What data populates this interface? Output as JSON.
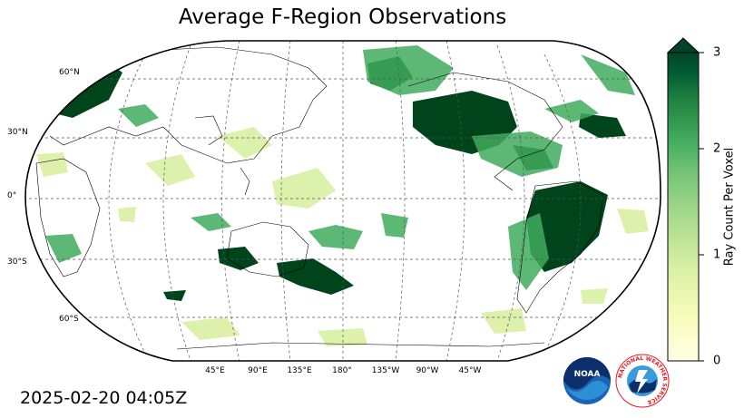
{
  "title": "Average F-Region Observations",
  "timestamp": "2025-02-20 04:05Z",
  "colorbar": {
    "label": "Ray Count Per Voxel",
    "ticks": [
      "0",
      "1",
      "2",
      "3"
    ],
    "extend": "max",
    "colormap": [
      "#ffffe5",
      "#f7fcb9",
      "#d9f0a3",
      "#addd8e",
      "#78c679",
      "#41ab5d",
      "#238443",
      "#005a32",
      "#004529"
    ]
  },
  "map": {
    "projection": "robinson",
    "central_longitude": 180,
    "lat_labels": [
      "60°N",
      "30°N",
      "0°",
      "30°S",
      "60°S"
    ],
    "lon_labels": [
      "45°E",
      "90°E",
      "135°E",
      "180°",
      "135°W",
      "90°W",
      "45°W"
    ],
    "gridlines": true
  },
  "logos": {
    "noaa": "NOAA",
    "nws_ring": "NATIONAL WEATHER SERVICE"
  }
}
